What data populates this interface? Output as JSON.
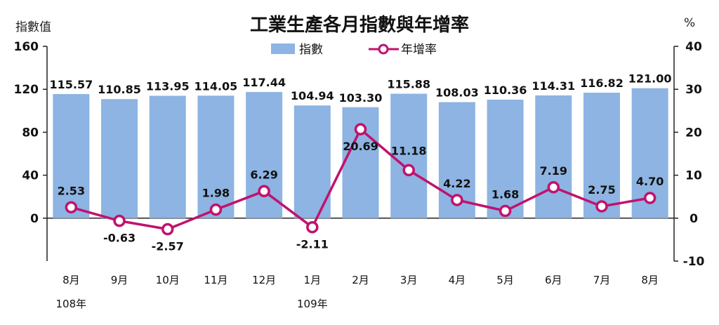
{
  "chart_data": {
    "type": "bar-line",
    "title": "工業生產各月指數與年增率",
    "left_axis_label": "指數值",
    "right_axis_label": "%",
    "categories": [
      "8月",
      "9月",
      "10月",
      "11月",
      "12月",
      "1月",
      "2月",
      "3月",
      "4月",
      "5月",
      "6月",
      "7月",
      "8月"
    ],
    "year_labels": [
      {
        "index": 0,
        "label": "108年"
      },
      {
        "index": 5,
        "label": "109年"
      }
    ],
    "left_axis": {
      "min": -40,
      "max": 160,
      "ticks": [
        0,
        40,
        80,
        120,
        160
      ]
    },
    "right_axis": {
      "min": -10,
      "max": 40,
      "ticks": [
        -10,
        0,
        10,
        20,
        30,
        40
      ]
    },
    "series": [
      {
        "name": "指數",
        "type": "bar",
        "axis": "left",
        "color": "#8db4e2",
        "values": [
          115.57,
          110.85,
          113.95,
          114.05,
          117.44,
          104.94,
          103.3,
          115.88,
          108.03,
          110.36,
          114.31,
          116.82,
          121.0
        ],
        "labels": [
          "115.57",
          "110.85",
          "113.95",
          "114.05",
          "117.44",
          "104.94",
          "103.30",
          "115.88",
          "108.03",
          "110.36",
          "114.31",
          "116.82",
          "121.00"
        ]
      },
      {
        "name": "年增率",
        "type": "line",
        "axis": "right",
        "color": "#c0126f",
        "values": [
          2.53,
          -0.63,
          -2.57,
          1.98,
          6.29,
          -2.11,
          20.69,
          11.18,
          4.22,
          1.68,
          7.19,
          2.75,
          4.7
        ],
        "labels": [
          "2.53",
          "-0.63",
          "-2.57",
          "1.98",
          "6.29",
          "-2.11",
          "20.69",
          "11.18",
          "4.22",
          "1.68",
          "7.19",
          "2.75",
          "4.70"
        ]
      }
    ],
    "legend_position": "top-center"
  }
}
